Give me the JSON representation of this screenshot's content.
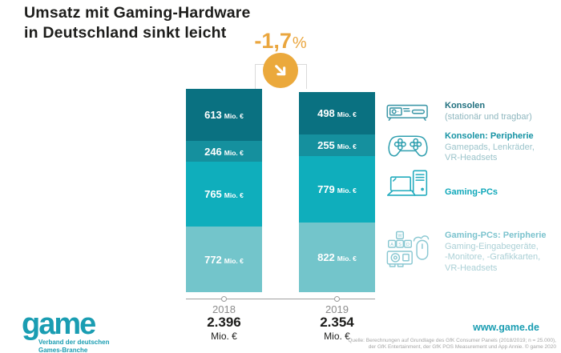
{
  "title": {
    "line1": "Umsatz mit Gaming-Hardware",
    "line2": "in Deutschland sinkt leicht"
  },
  "change_badge": {
    "value": "-1,7",
    "suffix": "%",
    "text_color": "#EAA63E",
    "circle_color": "#EBA93C",
    "icon": "arrow-down-right-icon"
  },
  "chart_data": {
    "type": "bar",
    "stacked": true,
    "orientation": "vertical",
    "stack_order": "top-to-bottom",
    "categories": [
      "2018",
      "2019"
    ],
    "series": [
      {
        "name": "Konsolen (stationär und tragbar)",
        "color": "#0A7181",
        "values": [
          613,
          498
        ]
      },
      {
        "name": "Konsolen: Peripherie (Gamepads, Lenkräder, VR-Headsets)",
        "color": "#15909E",
        "values": [
          246,
          255
        ]
      },
      {
        "name": "Gaming-PCs",
        "color": "#0FAEBC",
        "values": [
          765,
          779
        ]
      },
      {
        "name": "Gaming-PCs: Peripherie (Gaming-Eingabegeräte, -Monitore, -Grafikkarten, VR-Headsets)",
        "color": "#73C5CB",
        "values": [
          772,
          822
        ]
      }
    ],
    "value_suffix": "Mio. €",
    "totals_display": [
      "2.396",
      "2.354"
    ],
    "total_unit": "Mio. €",
    "change_percent": "-1,7%"
  },
  "legend": {
    "items": [
      {
        "icon": "console-icon",
        "title": "Konsolen",
        "subtitle": "(stationär und tragbar)",
        "title_color": "#1F6F7E",
        "subtitle_color": "#8FB7BF",
        "icon_color": "#3E98A8"
      },
      {
        "icon": "gamepad-icon",
        "title": "Konsolen: Peripherie",
        "subtitle": "Gamepads, Lenkräder,\nVR-Headsets",
        "title_color": "#1693A4",
        "subtitle_color": "#9CC4CB",
        "icon_color": "#2F9FAF"
      },
      {
        "icon": "gaming-pc-icon",
        "title": "Gaming-PCs",
        "subtitle": "",
        "title_color": "#10A8BA",
        "subtitle_color": "#9CC4CB",
        "icon_color": "#23ACBE"
      },
      {
        "icon": "pc-peripherals-icon",
        "title": "Gaming-PCs: Peripherie",
        "subtitle": "Gaming-Eingabegeräte,\n-Monitore, -Grafikkarten,\nVR-Headsets",
        "title_color": "#7CC3CE",
        "subtitle_color": "#ABD0D6",
        "icon_color": "#8AC8D2"
      }
    ]
  },
  "footer": {
    "logo_text": "game",
    "logo_tagline": "Verband der deutschen\nGames-Branche",
    "website": "www.game.de",
    "brand_color": "#1A9DB2",
    "source": "Quelle: Berechnungen auf Grundlage des GfK Consumer Panels (2018/2019; n = 25.000),\nder GfK Entertainment, der GfK POS Measurement und App Annie. © game 2020"
  }
}
